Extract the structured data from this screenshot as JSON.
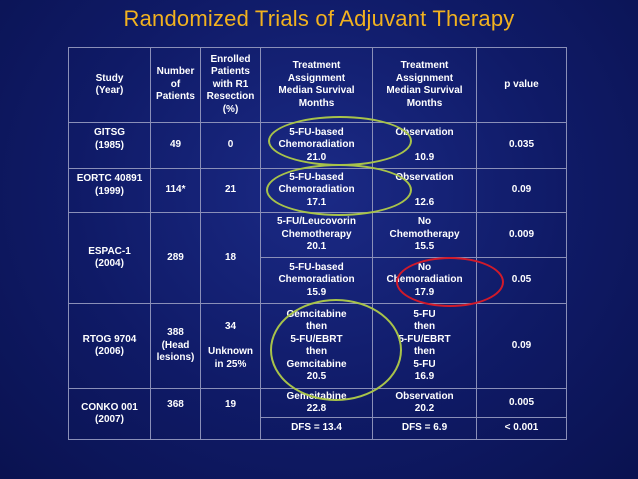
{
  "title": "Randomized Trials of Adjuvant Therapy",
  "headers": {
    "study": "Study\n(Year)",
    "patients": "Number\nof\nPatients",
    "enrolled": "Enrolled\nPatients\nwith R1\nResection\n(%)",
    "treatment1": "Treatment\nAssignment\nMedian Survival\nMonths",
    "treatment2": "Treatment\nAssignment\nMedian Survival\nMonths",
    "pvalue": "p value"
  },
  "rows": {
    "gitsg": {
      "study": "GITSG\n(1985)",
      "patients": "49",
      "r1": "0",
      "t1": "5-FU-based\nChemoradiation\n21.0",
      "t2_label": "Observation",
      "t2_value": "10.9",
      "p": "0.035"
    },
    "eortc": {
      "study": "EORTC 40891\n(1999)",
      "patients": "114*",
      "r1": "21",
      "t1": "5-FU-based\nChemoradiation\n17.1",
      "t2_label": "Observation",
      "t2_value": "12.6",
      "p": "0.09"
    },
    "espac": {
      "study": "ESPAC-1\n(2004)",
      "patients": "289",
      "r1": "18",
      "a_t1": "5-FU/Leucovorin\nChemotherapy\n20.1",
      "a_t2": "No\nChemotherapy\n15.5",
      "a_p": "0.009",
      "b_t1": "5-FU-based\nChemoradiation\n15.9",
      "b_t2": "No\nChemoradiation\n17.9",
      "b_p": "0.05"
    },
    "rtog": {
      "study": "RTOG 9704\n(2006)",
      "patients": "388\n(Head\nlesions)",
      "r1": "34\n\nUnknown\nin 25%",
      "t1": "Gemcitabine\nthen\n5-FU/EBRT\nthen\nGemcitabine\n20.5",
      "t2": "5-FU\nthen\n5-FU/EBRT\nthen\n5-FU\n16.9",
      "p": "0.09"
    },
    "conko": {
      "study": "CONKO 001\n(2007)",
      "patients": "368",
      "r1": "19",
      "a_t1": "Gemcitabine\n22.8",
      "a_t2": "Observation\n20.2",
      "a_p": "0.005",
      "b_t1": "DFS = 13.4",
      "b_t2": "DFS = 6.9",
      "b_p": "< 0.001"
    }
  },
  "colors": {
    "title": "#f2b21f",
    "highlight_green": "#a8c34a",
    "highlight_red": "#d11a2a"
  }
}
